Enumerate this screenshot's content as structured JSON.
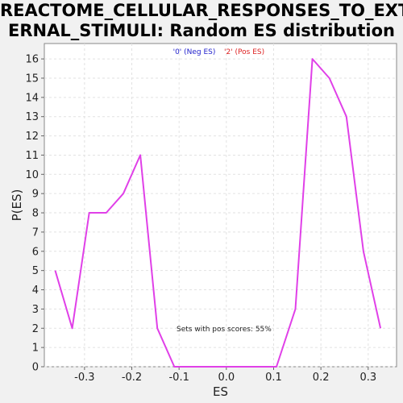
{
  "chart_data": {
    "type": "line",
    "title_line1": "REACTOME_CELLULAR_RESPONSES_TO_EXT",
    "title_line2": "ERNAL_STIMULI: Random ES distribution",
    "xlabel": "ES",
    "ylabel": "P(ES)",
    "xlim": [
      -0.385,
      0.36
    ],
    "ylim": [
      0,
      16.8
    ],
    "xticks": [
      -0.3,
      -0.2,
      -0.1,
      0.0,
      0.1,
      0.2,
      0.3
    ],
    "xtick_labels": [
      "-0.3",
      "-0.2",
      "-0.1",
      "0.0",
      "0.1",
      "0.2",
      "0.3"
    ],
    "yticks": [
      0,
      1,
      2,
      3,
      4,
      5,
      6,
      7,
      8,
      9,
      10,
      11,
      12,
      13,
      14,
      15,
      16
    ],
    "ytick_labels": [
      "0",
      "1",
      "2",
      "3",
      "4",
      "5",
      "6",
      "7",
      "8",
      "9",
      "10",
      "11",
      "12",
      "13",
      "14",
      "15",
      "16"
    ],
    "grid": true,
    "legend": [
      {
        "label": "'0' (Neg ES)",
        "color": "#2222cc"
      },
      {
        "label": "'2' (Pos ES)",
        "color": "#dd2222"
      }
    ],
    "series": [
      {
        "color": "#e040e8",
        "x": [
          -0.362,
          -0.326,
          -0.29,
          -0.254,
          -0.218,
          -0.182,
          -0.146,
          -0.11,
          -0.074,
          -0.038,
          -0.002,
          0.034,
          0.07,
          0.106,
          0.146,
          0.182,
          0.218,
          0.254,
          0.29,
          0.326
        ],
        "y": [
          5,
          2,
          8,
          8,
          9,
          11,
          2,
          0,
          0,
          0,
          0,
          0,
          0,
          0,
          3,
          16,
          15,
          13,
          6,
          2
        ]
      }
    ],
    "annotation": "Sets with pos scores: 55%"
  }
}
